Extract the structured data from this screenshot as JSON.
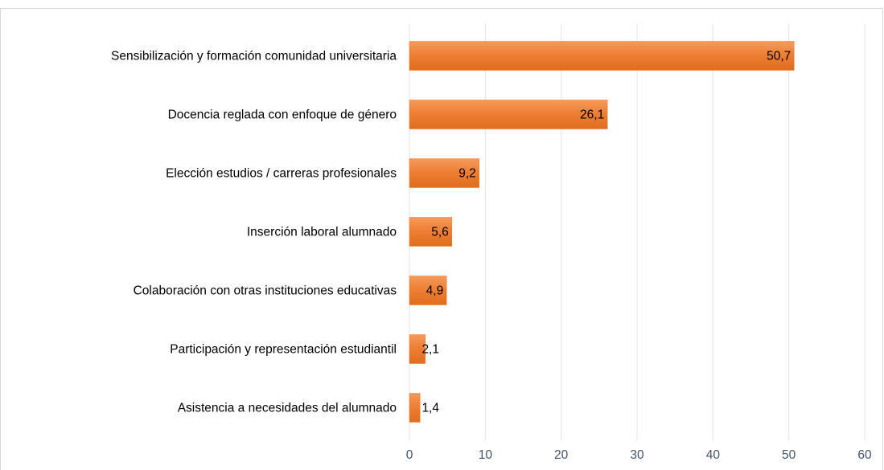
{
  "chart_data": {
    "type": "barh",
    "categories": [
      "Sensibilización y formación comunidad universitaria",
      "Docencia reglada con enfoque de género",
      "Elección estudios / carreras profesionales",
      "Inserción laboral alumnado",
      "Colaboración con otras instituciones educativas",
      "Participación y representación estudiantil",
      "Asistencia a necesidades del alumnado"
    ],
    "values": [
      50.7,
      26.1,
      9.2,
      5.6,
      4.9,
      2.1,
      1.4
    ],
    "value_labels": [
      "50,7",
      "26,1",
      "9,2",
      "5,6",
      "4,9",
      "2,1",
      "1,4"
    ],
    "color": "#ed7d31",
    "xlim": [
      0,
      60
    ],
    "xticks": [
      0,
      10,
      20,
      30,
      40,
      50,
      60
    ],
    "grid": true
  }
}
